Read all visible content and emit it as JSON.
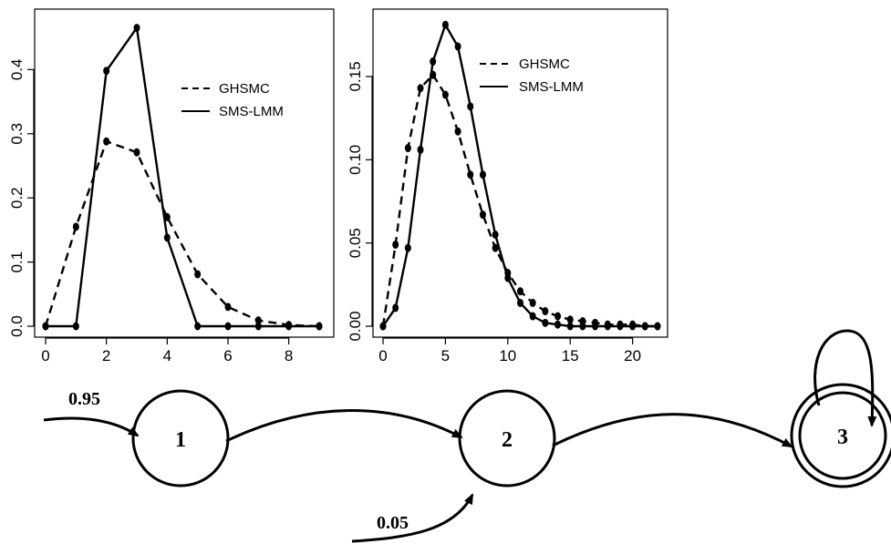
{
  "chart_data": [
    {
      "type": "line",
      "title": "",
      "xlabel": "",
      "ylabel": "",
      "xlim": [
        0,
        9
      ],
      "ylim": [
        0,
        0.48
      ],
      "xticks": [
        0,
        2,
        4,
        6,
        8
      ],
      "yticks": [
        0.0,
        0.1,
        0.2,
        0.3,
        0.4
      ],
      "ytick_labels": [
        "0.0",
        "0.1",
        "0.2",
        "0.3",
        "0.4"
      ],
      "legend": {
        "position": "top-right"
      },
      "grid": false,
      "x": [
        0,
        1,
        2,
        3,
        4,
        5,
        6,
        7,
        8,
        9
      ],
      "series": [
        {
          "name": "GHSMC",
          "style": "dashed",
          "values": [
            0.0,
            0.155,
            0.288,
            0.271,
            0.17,
            0.081,
            0.03,
            0.009,
            0.002,
            0.0
          ]
        },
        {
          "name": "SMS-LMM",
          "style": "solid",
          "values": [
            0.0,
            0.0,
            0.398,
            0.465,
            0.138,
            0.0,
            0.0,
            0.0,
            0.0,
            0.0
          ]
        }
      ]
    },
    {
      "type": "line",
      "title": "",
      "xlabel": "",
      "ylabel": "",
      "xlim": [
        0,
        22
      ],
      "ylim": [
        0,
        0.185
      ],
      "xticks": [
        0,
        5,
        10,
        15,
        20
      ],
      "yticks": [
        0.0,
        0.05,
        0.1,
        0.15
      ],
      "ytick_labels": [
        "0.00",
        "0.05",
        "0.10",
        "0.15"
      ],
      "legend": {
        "position": "top-right"
      },
      "grid": false,
      "x": [
        0,
        1,
        2,
        3,
        4,
        5,
        6,
        7,
        8,
        9,
        10,
        11,
        12,
        13,
        14,
        15,
        16,
        17,
        18,
        19,
        20,
        21,
        22
      ],
      "series": [
        {
          "name": "GHSMC",
          "style": "dashed",
          "values": [
            0.0,
            0.049,
            0.107,
            0.143,
            0.151,
            0.139,
            0.117,
            0.091,
            0.067,
            0.047,
            0.032,
            0.021,
            0.014,
            0.009,
            0.006,
            0.004,
            0.003,
            0.002,
            0.001,
            0.001,
            0.001,
            0.0,
            0.0
          ]
        },
        {
          "name": "SMS-LMM",
          "style": "solid",
          "values": [
            0.0,
            0.011,
            0.047,
            0.106,
            0.159,
            0.181,
            0.168,
            0.132,
            0.091,
            0.055,
            0.029,
            0.014,
            0.006,
            0.002,
            0.001,
            0.0,
            0.0,
            0.0,
            0.0,
            0.0,
            0.0,
            0.0,
            0.0
          ]
        }
      ]
    }
  ],
  "diagram": {
    "states": [
      "1",
      "2",
      "3"
    ],
    "accepting_state": "3",
    "initial_probabilities": [
      "0.95",
      "0.05"
    ]
  }
}
